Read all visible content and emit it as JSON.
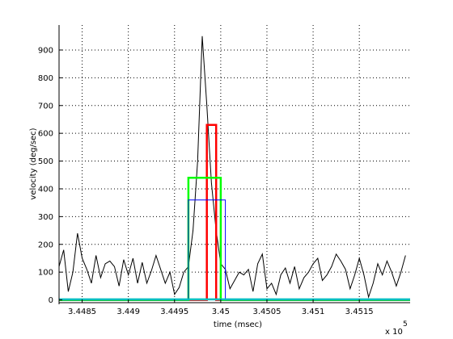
{
  "chart_data": {
    "type": "line",
    "xlabel": "time (msec)",
    "ylabel": "velocity (deg/sec)",
    "x_exponent_label": "x 10",
    "x_exponent_power": "5",
    "xlim": [
      3.44825,
      3.45205
    ],
    "ylim": [
      -10,
      990
    ],
    "xticks": [
      3.4485,
      3.449,
      3.4495,
      3.45,
      3.4505,
      3.451,
      3.4515
    ],
    "xtick_labels": [
      "3.4485",
      "3.449",
      "3.4495",
      "3.45",
      "3.4505",
      "3.451",
      "3.4515"
    ],
    "yticks": [
      0,
      100,
      200,
      300,
      400,
      500,
      600,
      700,
      800,
      900
    ],
    "ytick_labels": [
      "0",
      "100",
      "200",
      "300",
      "400",
      "500",
      "600",
      "700",
      "800",
      "900"
    ],
    "grid": true,
    "series": [
      {
        "color": "#000000",
        "style": "line",
        "x": [
          3.44825,
          3.4483,
          3.44835,
          3.4484,
          3.44845,
          3.4485,
          3.44855,
          3.4486,
          3.44865,
          3.4487,
          3.44875,
          3.4488,
          3.44885,
          3.4489,
          3.44895,
          3.449,
          3.44905,
          3.4491,
          3.44915,
          3.4492,
          3.44925,
          3.4493,
          3.44935,
          3.4494,
          3.44945,
          3.4495,
          3.44955,
          3.4496,
          3.44965,
          3.4497,
          3.44975,
          3.4498,
          3.44985,
          3.4499,
          3.44995,
          3.45,
          3.45005,
          3.4501,
          3.45015,
          3.4502,
          3.45025,
          3.4503,
          3.45035,
          3.4504,
          3.45045,
          3.4505,
          3.45055,
          3.4506,
          3.45065,
          3.4507,
          3.45075,
          3.4508,
          3.45085,
          3.4509,
          3.45095,
          3.451,
          3.45105,
          3.4511,
          3.45115,
          3.4512,
          3.45125,
          3.4513,
          3.45135,
          3.4514,
          3.45145,
          3.4515,
          3.45155,
          3.4516,
          3.45165,
          3.4517,
          3.45175,
          3.4518,
          3.45185,
          3.4519,
          3.45195,
          3.452
        ],
        "y": [
          120,
          180,
          30,
          100,
          240,
          150,
          110,
          60,
          160,
          80,
          130,
          140,
          120,
          50,
          145,
          90,
          150,
          60,
          135,
          60,
          105,
          160,
          110,
          60,
          100,
          20,
          45,
          100,
          120,
          250,
          500,
          950,
          700,
          420,
          250,
          130,
          110,
          40,
          70,
          100,
          90,
          110,
          30,
          130,
          165,
          40,
          60,
          20,
          90,
          115,
          60,
          120,
          40,
          80,
          100,
          130,
          150,
          70,
          90,
          120,
          165,
          140,
          110,
          40,
          90,
          150,
          90,
          10,
          60,
          130,
          90,
          140,
          100,
          50,
          100,
          160
        ]
      },
      {
        "color": "#ff0000",
        "style": "step",
        "x": [
          3.44825,
          3.44975,
          3.44975,
          3.44985,
          3.44985,
          3.44995,
          3.44995,
          3.45205
        ],
        "y": [
          0,
          0,
          0,
          0,
          630,
          630,
          0,
          0
        ]
      },
      {
        "color": "#00ff00",
        "style": "step",
        "x": [
          3.44825,
          3.44965,
          3.44965,
          3.44985,
          3.44985,
          3.45,
          3.45,
          3.45205
        ],
        "y": [
          0,
          0,
          440,
          440,
          440,
          440,
          0,
          0
        ]
      },
      {
        "color": "#0000ff",
        "style": "step",
        "x": [
          3.44825,
          3.44965,
          3.44965,
          3.45005,
          3.45005,
          3.45205
        ],
        "y": [
          0,
          0,
          360,
          360,
          0,
          0
        ]
      },
      {
        "color": "#00bfbf",
        "style": "step",
        "x": [
          3.44825,
          3.45205
        ],
        "y": [
          2,
          2
        ]
      }
    ]
  }
}
